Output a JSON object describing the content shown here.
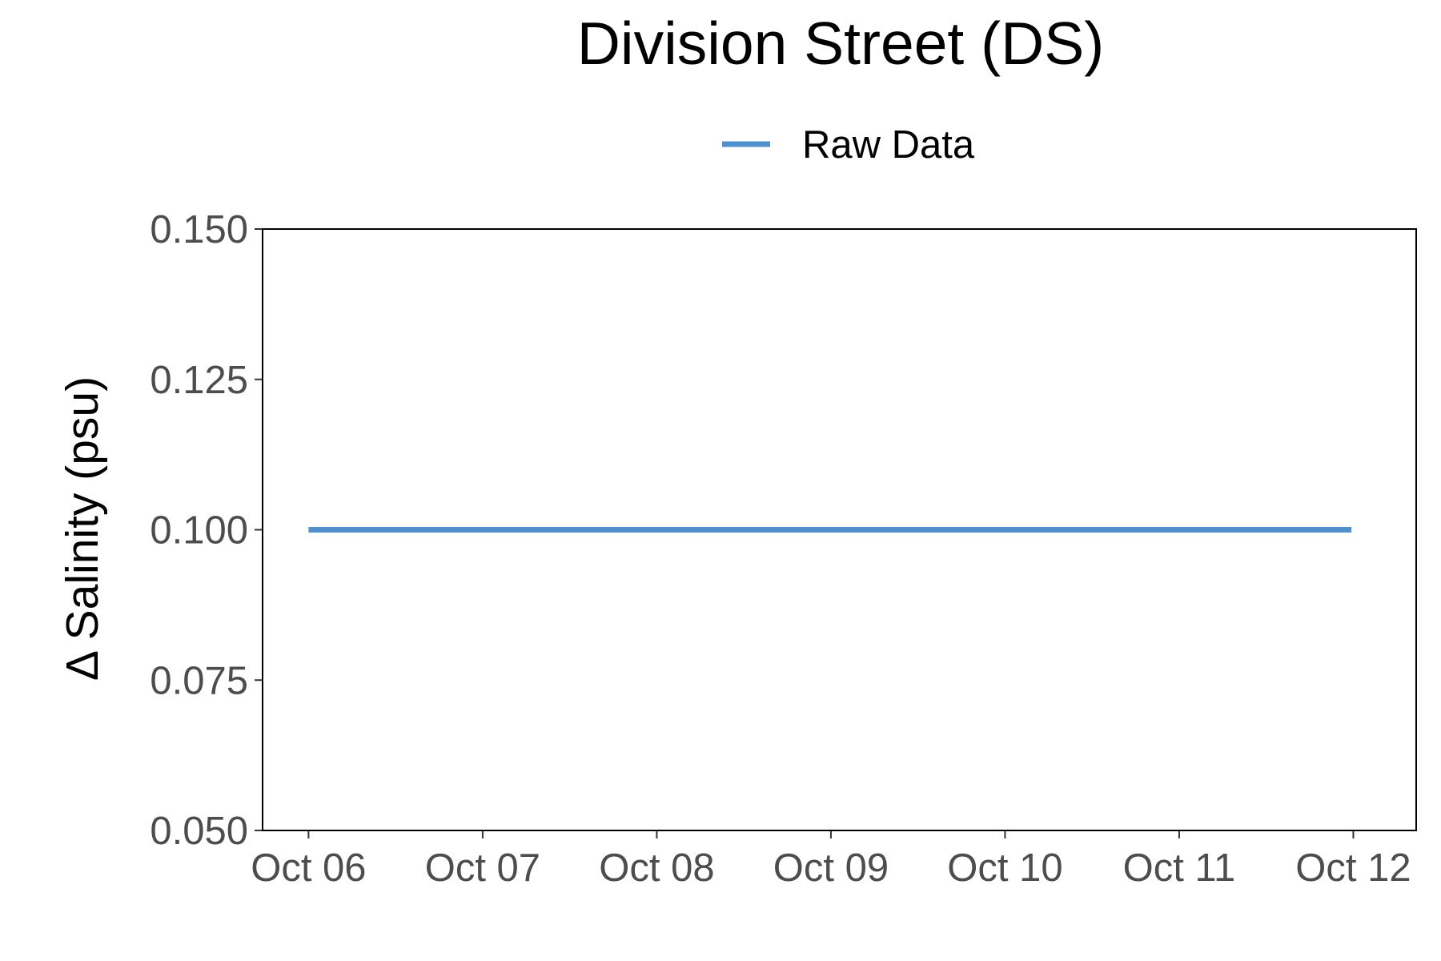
{
  "chart_data": {
    "type": "line",
    "title": "Division Street (DS)",
    "xlabel": "",
    "ylabel": "Δ Salinity (psu)",
    "legend": {
      "position": "top",
      "entries": [
        "Raw Data"
      ]
    },
    "grid": false,
    "x_ticks": [
      "Oct 06",
      "Oct 07",
      "Oct 08",
      "Oct 09",
      "Oct 10",
      "Oct 11",
      "Oct 12"
    ],
    "xlim": [
      "Oct 05 17:40",
      "Oct 12 08:40"
    ],
    "y_ticks": [
      "0.150",
      "0.125",
      "0.100",
      "0.075",
      "0.050"
    ],
    "ylim": [
      0.05,
      0.15
    ],
    "series": [
      {
        "name": "Raw Data",
        "color": "#4f90cd",
        "x": [
          "Oct 06 00:00",
          "Oct 11 23:45"
        ],
        "values": [
          0.1,
          0.1
        ]
      }
    ]
  }
}
